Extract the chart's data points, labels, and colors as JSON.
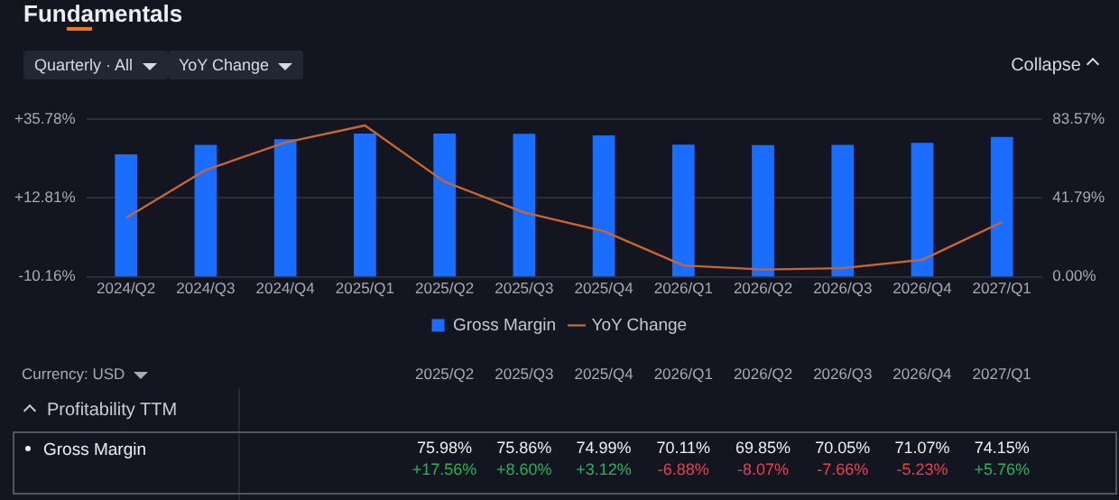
{
  "chart_data": {
    "type": "bar",
    "title": "Fundamentals",
    "annotations": [
      "Quarterly · All",
      "YoY Change",
      "Collapse",
      "Currency: USD",
      "Profitability TTM"
    ],
    "categories": [
      "2024/Q2",
      "2024/Q3",
      "2024/Q4",
      "2025/Q1",
      "2025/Q2",
      "2025/Q3",
      "2025/Q4",
      "2026/Q1",
      "2026/Q2",
      "2026/Q3",
      "2026/Q4",
      "2027/Q1"
    ],
    "series": [
      {
        "name": "Gross Margin",
        "axis": "y2",
        "color": "#1a6dff",
        "values": [
          65,
          70,
          73,
          76,
          75.98,
          75.86,
          74.99,
          70.11,
          69.85,
          70.05,
          71.07,
          74.15
        ],
        "value_labels": [
          null,
          null,
          null,
          null,
          "75.98%",
          "75.86%",
          "74.99%",
          "70.11%",
          "69.85%",
          "70.05%",
          "71.07%",
          "74.15%"
        ]
      },
      {
        "name": "YoY Change",
        "type": "line",
        "color": "#c8662e",
        "values": [
          7,
          21,
          29,
          34,
          17.56,
          8.6,
          3.12,
          -6.88,
          -8.07,
          -7.66,
          -5.23,
          5.76
        ],
        "value_labels": [
          null,
          null,
          null,
          null,
          "+17.56%",
          "+8.60%",
          "+3.12%",
          "-6.88%",
          "-8.07%",
          "-7.66%",
          "-5.23%",
          "+5.76%"
        ]
      }
    ],
    "ylim": [
      -10.16,
      35.78
    ],
    "yticks": [
      {
        "value": -10.16,
        "label": "-10.16%"
      },
      {
        "value": 12.81,
        "label": "+12.81%"
      },
      {
        "value": 35.78,
        "label": "+35.78%"
      }
    ],
    "y2lim": [
      0,
      83.57
    ],
    "y2ticks": [
      {
        "value": 0,
        "label": "0.00%"
      },
      {
        "value": 41.79,
        "label": "41.79%"
      },
      {
        "value": 83.57,
        "label": "83.57%"
      }
    ],
    "grid": "y",
    "legend": "bottom",
    "marker": "none",
    "line_style": "solid"
  }
}
